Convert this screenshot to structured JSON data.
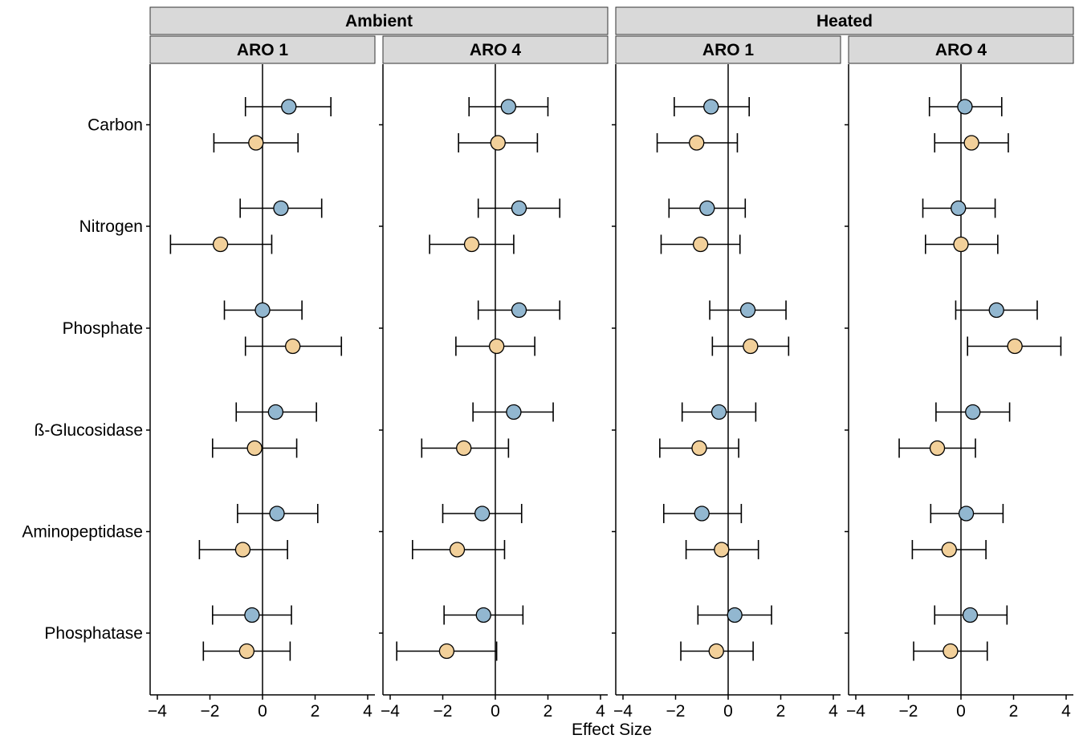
{
  "chart_data": {
    "type": "scatter",
    "subtype": "forest-plot",
    "xlabel": "Effect Size",
    "xlim": [
      -4,
      4
    ],
    "xticks": [
      -4,
      -2,
      0,
      2,
      4
    ],
    "xtick_labels": [
      "−4",
      "−2",
      "0",
      "2",
      "4"
    ],
    "reference_line_x": 0,
    "grid": false,
    "legend": "none",
    "categories": [
      "Carbon",
      "Nitrogen",
      "Phosphate",
      "ß-Glucosidase",
      "Aminopeptidase",
      "Phosphatase"
    ],
    "groups": [
      {
        "treatment": "Ambient",
        "panels": [
          {
            "site": "ARO 1",
            "series": [
              {
                "color": "#92b7d0",
                "estimates": [
                  1.0,
                  0.7,
                  0.0,
                  0.5,
                  0.55,
                  -0.4
                ],
                "lower": [
                  -0.65,
                  -0.85,
                  -1.45,
                  -1.0,
                  -0.95,
                  -1.9
                ],
                "upper": [
                  2.6,
                  2.25,
                  1.5,
                  2.05,
                  2.1,
                  1.1
                ]
              },
              {
                "color": "#f2d09a",
                "estimates": [
                  -0.25,
                  -1.6,
                  1.15,
                  -0.3,
                  -0.75,
                  -0.6
                ],
                "lower": [
                  -1.85,
                  -3.5,
                  -0.65,
                  -1.9,
                  -2.4,
                  -2.25
                ],
                "upper": [
                  1.35,
                  0.35,
                  3.0,
                  1.3,
                  0.95,
                  1.05
                ]
              }
            ]
          },
          {
            "site": "ARO 4",
            "series": [
              {
                "color": "#92b7d0",
                "estimates": [
                  0.5,
                  0.9,
                  0.9,
                  0.7,
                  -0.5,
                  -0.45
                ],
                "lower": [
                  -1.0,
                  -0.65,
                  -0.65,
                  -0.85,
                  -2.0,
                  -1.95
                ],
                "upper": [
                  2.0,
                  2.45,
                  2.45,
                  2.2,
                  1.0,
                  1.05
                ]
              },
              {
                "color": "#f2d09a",
                "estimates": [
                  0.1,
                  -0.9,
                  0.05,
                  -1.2,
                  -1.45,
                  -1.85
                ],
                "lower": [
                  -1.4,
                  -2.5,
                  -1.5,
                  -2.8,
                  -3.15,
                  -3.75
                ],
                "upper": [
                  1.6,
                  0.7,
                  1.5,
                  0.5,
                  0.35,
                  0.05
                ]
              }
            ]
          }
        ]
      },
      {
        "treatment": "Heated",
        "panels": [
          {
            "site": "ARO 1",
            "series": [
              {
                "color": "#92b7d0",
                "estimates": [
                  -0.65,
                  -0.8,
                  0.75,
                  -0.35,
                  -1.0,
                  0.25
                ],
                "lower": [
                  -2.05,
                  -2.25,
                  -0.7,
                  -1.75,
                  -2.45,
                  -1.15
                ],
                "upper": [
                  0.8,
                  0.65,
                  2.2,
                  1.05,
                  0.5,
                  1.65
                ]
              },
              {
                "color": "#f2d09a",
                "estimates": [
                  -1.2,
                  -1.05,
                  0.85,
                  -1.1,
                  -0.25,
                  -0.45
                ],
                "lower": [
                  -2.7,
                  -2.55,
                  -0.6,
                  -2.6,
                  -1.6,
                  -1.8
                ],
                "upper": [
                  0.35,
                  0.45,
                  2.3,
                  0.4,
                  1.15,
                  0.95
                ]
              }
            ]
          },
          {
            "site": "ARO 4",
            "series": [
              {
                "color": "#92b7d0",
                "estimates": [
                  0.15,
                  -0.1,
                  1.35,
                  0.45,
                  0.2,
                  0.35
                ],
                "lower": [
                  -1.2,
                  -1.45,
                  -0.2,
                  -0.95,
                  -1.15,
                  -1.0
                ],
                "upper": [
                  1.55,
                  1.3,
                  2.9,
                  1.85,
                  1.6,
                  1.75
                ]
              },
              {
                "color": "#f2d09a",
                "estimates": [
                  0.4,
                  0.0,
                  2.05,
                  -0.9,
                  -0.45,
                  -0.4
                ],
                "lower": [
                  -1.0,
                  -1.35,
                  0.25,
                  -2.35,
                  -1.85,
                  -1.8
                ],
                "upper": [
                  1.8,
                  1.4,
                  3.8,
                  0.55,
                  0.95,
                  1.0
                ]
              }
            ]
          }
        ]
      }
    ]
  }
}
